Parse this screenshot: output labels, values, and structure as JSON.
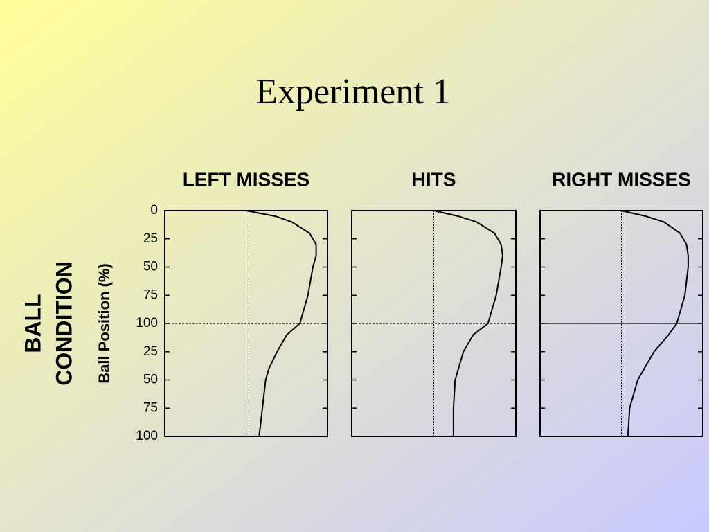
{
  "title": "Experiment 1",
  "group_label": [
    "BALL",
    "CONDITION"
  ],
  "chart_data": [
    {
      "type": "line",
      "title": "LEFT MISSES",
      "ylabel": "Ball Position (%)",
      "xlim": [
        0,
        10
      ],
      "ylim": [
        0,
        200
      ],
      "yticks": [
        0,
        25,
        50,
        75,
        100,
        {
          "value": 125,
          "label": "25"
        },
        {
          "value": 150,
          "label": "50"
        },
        {
          "value": 175,
          "label": "75"
        },
        {
          "value": 200,
          "label": "100"
        }
      ],
      "vline": 5,
      "hline": 100,
      "hline_style": "dashed",
      "color": "#000000",
      "positions": [
        0,
        5,
        10,
        20,
        30,
        40,
        50,
        75,
        100,
        110,
        125,
        140,
        150,
        175,
        200
      ],
      "values": [
        5.0,
        6.8,
        7.8,
        8.9,
        9.3,
        9.3,
        9.1,
        8.8,
        8.3,
        7.5,
        6.9,
        6.4,
        6.2,
        6.0,
        5.8
      ]
    },
    {
      "type": "line",
      "title": "HITS",
      "xlim": [
        0,
        10
      ],
      "ylim": [
        0,
        200
      ],
      "yticks": [
        0,
        25,
        50,
        75,
        100,
        125,
        150,
        175,
        200
      ],
      "vline": 5,
      "hline": 100,
      "hline_style": "dashed",
      "color": "#000000",
      "positions": [
        0,
        5,
        10,
        20,
        30,
        40,
        50,
        75,
        100,
        110,
        125,
        150,
        175,
        200
      ],
      "values": [
        5.0,
        6.5,
        7.6,
        8.7,
        9.1,
        9.2,
        9.1,
        8.8,
        8.3,
        7.4,
        6.8,
        6.3,
        6.2,
        6.2
      ]
    },
    {
      "type": "line",
      "title": "RIGHT MISSES",
      "xlim": [
        0,
        10
      ],
      "ylim": [
        0,
        200
      ],
      "yticks": [
        0,
        25,
        50,
        75,
        100,
        125,
        150,
        175,
        200
      ],
      "vline": 5,
      "hline": 100,
      "hline_style": "solid",
      "color": "#000000",
      "positions": [
        0,
        5,
        10,
        20,
        30,
        40,
        50,
        75,
        100,
        110,
        125,
        150,
        175,
        200
      ],
      "values": [
        5.0,
        6.5,
        7.6,
        8.6,
        9.0,
        9.1,
        9.1,
        8.9,
        8.4,
        7.9,
        7.0,
        6.0,
        5.5,
        5.4
      ]
    }
  ]
}
